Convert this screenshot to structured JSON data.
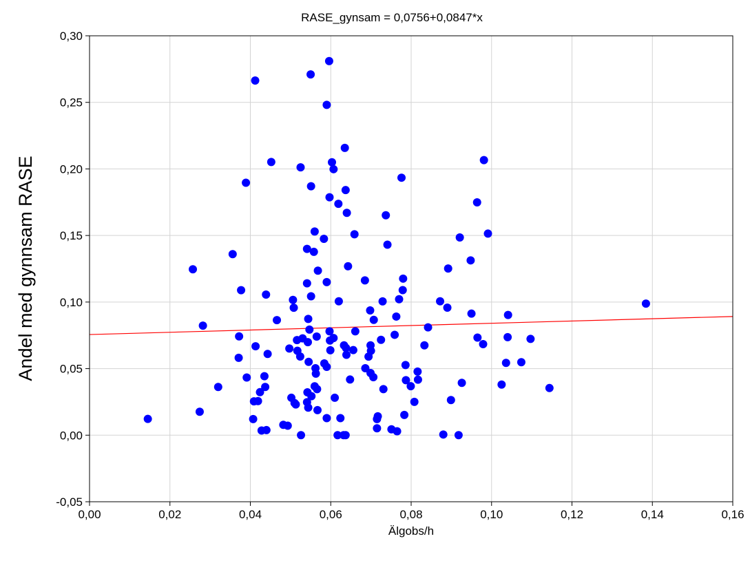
{
  "chart_data": {
    "type": "scatter",
    "title": "RASE_gynsam = 0,0756+0,0847*x",
    "xlabel": "Älgobs/h",
    "ylabel": "Andel med gynnsam RASE",
    "xlim": [
      0.0,
      0.16
    ],
    "ylim": [
      -0.05,
      0.3
    ],
    "x_ticks": [
      "0,00",
      "0,02",
      "0,04",
      "0,06",
      "0,08",
      "0,10",
      "0,12",
      "0,14",
      "0,16"
    ],
    "y_ticks": [
      "-0,05",
      "0,00",
      "0,05",
      "0,10",
      "0,15",
      "0,20",
      "0,25",
      "0,30"
    ],
    "grid": true,
    "colors": {
      "points": "#0000ff",
      "fit_line": "#ff0000",
      "grid": "#d3d3d3"
    },
    "fit_line": {
      "intercept": 0.0756,
      "slope": 0.0847
    },
    "points": [
      [
        0.0145,
        0.0122
      ],
      [
        0.0257,
        0.1246
      ],
      [
        0.0274,
        0.0176
      ],
      [
        0.0282,
        0.0823
      ],
      [
        0.032,
        0.0362
      ],
      [
        0.0356,
        0.136
      ],
      [
        0.0371,
        0.0581
      ],
      [
        0.0372,
        0.0742
      ],
      [
        0.0377,
        0.1089
      ],
      [
        0.0389,
        0.1896
      ],
      [
        0.0391,
        0.0433
      ],
      [
        0.0407,
        0.0121
      ],
      [
        0.0409,
        0.0254
      ],
      [
        0.0412,
        0.2664
      ],
      [
        0.0413,
        0.0668
      ],
      [
        0.0419,
        0.0256
      ],
      [
        0.0424,
        0.0323
      ],
      [
        0.0428,
        0.0035
      ],
      [
        0.0435,
        0.0443
      ],
      [
        0.0437,
        0.0362
      ],
      [
        0.0439,
        0.1056
      ],
      [
        0.044,
        0.0038
      ],
      [
        0.0443,
        0.061
      ],
      [
        0.0452,
        0.2052
      ],
      [
        0.0466,
        0.0864
      ],
      [
        0.0482,
        0.0078
      ],
      [
        0.0493,
        0.0071
      ],
      [
        0.0497,
        0.0651
      ],
      [
        0.0502,
        0.0281
      ],
      [
        0.0506,
        0.1016
      ],
      [
        0.0508,
        0.0957
      ],
      [
        0.051,
        0.0241
      ],
      [
        0.0513,
        0.0231
      ],
      [
        0.0516,
        0.0714
      ],
      [
        0.0517,
        0.0634
      ],
      [
        0.0524,
        0.0591
      ],
      [
        0.0525,
        0.2012
      ],
      [
        0.0526,
        0.0
      ],
      [
        0.053,
        0.0727
      ],
      [
        0.0541,
        0.1399
      ],
      [
        0.0541,
        0.1141
      ],
      [
        0.0541,
        0.0248
      ],
      [
        0.0542,
        0.0322
      ],
      [
        0.0543,
        0.0699
      ],
      [
        0.0544,
        0.0873
      ],
      [
        0.0544,
        0.0207
      ],
      [
        0.0545,
        0.0551
      ],
      [
        0.0547,
        0.0793
      ],
      [
        0.055,
        0.271
      ],
      [
        0.0551,
        0.187
      ],
      [
        0.0551,
        0.1043
      ],
      [
        0.0552,
        0.0293
      ],
      [
        0.0558,
        0.1377
      ],
      [
        0.056,
        0.153
      ],
      [
        0.056,
        0.0367
      ],
      [
        0.0562,
        0.0503
      ],
      [
        0.0563,
        0.0462
      ],
      [
        0.0565,
        0.0741
      ],
      [
        0.0566,
        0.0346
      ],
      [
        0.0567,
        0.0188
      ],
      [
        0.0568,
        0.1236
      ],
      [
        0.0583,
        0.1475
      ],
      [
        0.0584,
        0.0539
      ],
      [
        0.059,
        0.2481
      ],
      [
        0.059,
        0.115
      ],
      [
        0.059,
        0.0128
      ],
      [
        0.059,
        0.0513
      ],
      [
        0.0596,
        0.281
      ],
      [
        0.0597,
        0.1787
      ],
      [
        0.0597,
        0.078
      ],
      [
        0.0598,
        0.0711
      ],
      [
        0.0599,
        0.0638
      ],
      [
        0.0603,
        0.205
      ],
      [
        0.0607,
        0.1998
      ],
      [
        0.0607,
        0.073
      ],
      [
        0.061,
        0.0281
      ],
      [
        0.0617,
        0.0
      ],
      [
        0.0619,
        0.1738
      ],
      [
        0.062,
        0.1006
      ],
      [
        0.0624,
        0.0128
      ],
      [
        0.0632,
        0.0
      ],
      [
        0.0633,
        0.0675
      ],
      [
        0.0635,
        0.2158
      ],
      [
        0.0637,
        0.0
      ],
      [
        0.0637,
        0.1841
      ],
      [
        0.0638,
        0.0655
      ],
      [
        0.0639,
        0.0604
      ],
      [
        0.064,
        0.167
      ],
      [
        0.0643,
        0.1269
      ],
      [
        0.0648,
        0.0418
      ],
      [
        0.0656,
        0.0639
      ],
      [
        0.0659,
        0.1509
      ],
      [
        0.0661,
        0.078
      ],
      [
        0.0685,
        0.1163
      ],
      [
        0.0686,
        0.0503
      ],
      [
        0.0694,
        0.059
      ],
      [
        0.0698,
        0.0937
      ],
      [
        0.0699,
        0.0467
      ],
      [
        0.0699,
        0.0675
      ],
      [
        0.07,
        0.0634
      ],
      [
        0.0706,
        0.0436
      ],
      [
        0.0707,
        0.0866
      ],
      [
        0.0715,
        0.0052
      ],
      [
        0.0715,
        0.0121
      ],
      [
        0.0717,
        0.0142
      ],
      [
        0.0725,
        0.0716
      ],
      [
        0.0729,
        0.1005
      ],
      [
        0.0731,
        0.0346
      ],
      [
        0.0737,
        0.1652
      ],
      [
        0.0741,
        0.1431
      ],
      [
        0.0751,
        0.0044
      ],
      [
        0.0759,
        0.0754
      ],
      [
        0.0763,
        0.0891
      ],
      [
        0.0765,
        0.0029
      ],
      [
        0.077,
        0.1021
      ],
      [
        0.0776,
        0.1934
      ],
      [
        0.0779,
        0.109
      ],
      [
        0.078,
        0.1176
      ],
      [
        0.0783,
        0.0152
      ],
      [
        0.0786,
        0.0527
      ],
      [
        0.0787,
        0.0413
      ],
      [
        0.0799,
        0.0368
      ],
      [
        0.0808,
        0.025
      ],
      [
        0.0816,
        0.0478
      ],
      [
        0.0817,
        0.0417
      ],
      [
        0.0833,
        0.0675
      ],
      [
        0.0842,
        0.081
      ],
      [
        0.0872,
        0.1006
      ],
      [
        0.088,
        0.0005
      ],
      [
        0.089,
        0.0958
      ],
      [
        0.0892,
        0.1252
      ],
      [
        0.0899,
        0.0264
      ],
      [
        0.0918,
        0.0
      ],
      [
        0.0921,
        0.1485
      ],
      [
        0.0926,
        0.0393
      ],
      [
        0.0948,
        0.1313
      ],
      [
        0.095,
        0.0913
      ],
      [
        0.0964,
        0.1749
      ],
      [
        0.0965,
        0.0733
      ],
      [
        0.0979,
        0.0684
      ],
      [
        0.0981,
        0.2066
      ],
      [
        0.0991,
        0.1514
      ],
      [
        0.1025,
        0.038
      ],
      [
        0.1036,
        0.0543
      ],
      [
        0.104,
        0.0736
      ],
      [
        0.1041,
        0.0903
      ],
      [
        0.1074,
        0.0548
      ],
      [
        0.1097,
        0.0723
      ],
      [
        0.1144,
        0.0354
      ],
      [
        0.1384,
        0.0988
      ]
    ]
  }
}
